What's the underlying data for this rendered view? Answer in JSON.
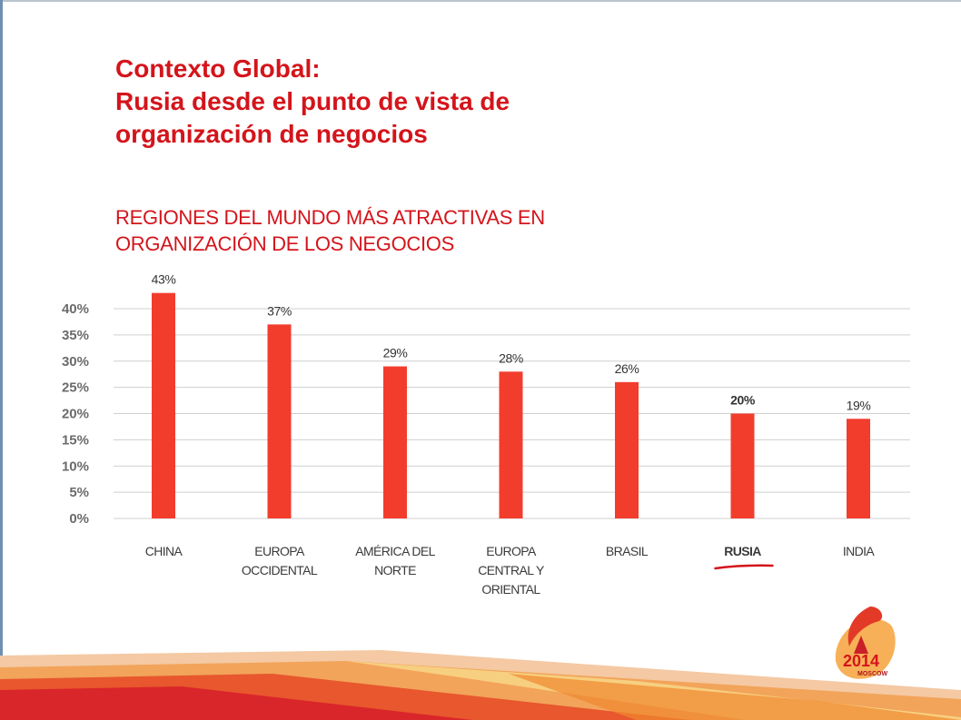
{
  "slide": {
    "title_lines": [
      "Contexto Global:",
      "Rusia desde el punto de vista de",
      "organización de negocios"
    ],
    "subtitle_lines": [
      "REGIONES DEL MUNDO MÁS ATRACTIVAS EN",
      "ORGANIZACIÓN DE LOS NEGOCIOS"
    ]
  },
  "logo": {
    "year": "2014",
    "city": "MOSCOW"
  },
  "colors": {
    "bar": "#f23d2d",
    "title": "#d4141b",
    "grid": "#cfcfcf",
    "highlight_underline": "#d4141b"
  },
  "chart_data": {
    "type": "bar",
    "categories": [
      [
        "CHINA"
      ],
      [
        "EUROPA",
        "OCCIDENTAL"
      ],
      [
        "AMÉRICA DEL",
        "NORTE"
      ],
      [
        "EUROPA",
        "CENTRAL Y",
        "ORIENTAL"
      ],
      [
        "BRASIL"
      ],
      [
        "RUSIA"
      ],
      [
        "INDIA"
      ]
    ],
    "values": [
      43,
      37,
      29,
      28,
      26,
      20,
      19
    ],
    "data_labels": [
      "43%",
      "37%",
      "29%",
      "28%",
      "26%",
      "20%",
      "19%"
    ],
    "highlighted_category_index": 5,
    "ylim": [
      0,
      40
    ],
    "yticks": [
      "0%",
      "5%",
      "10%",
      "15%",
      "20%",
      "25%",
      "30%",
      "35%",
      "40%"
    ],
    "ytick_values": [
      0,
      5,
      10,
      15,
      20,
      25,
      30,
      35,
      40
    ],
    "grid": true,
    "xlabel": "",
    "ylabel": ""
  }
}
